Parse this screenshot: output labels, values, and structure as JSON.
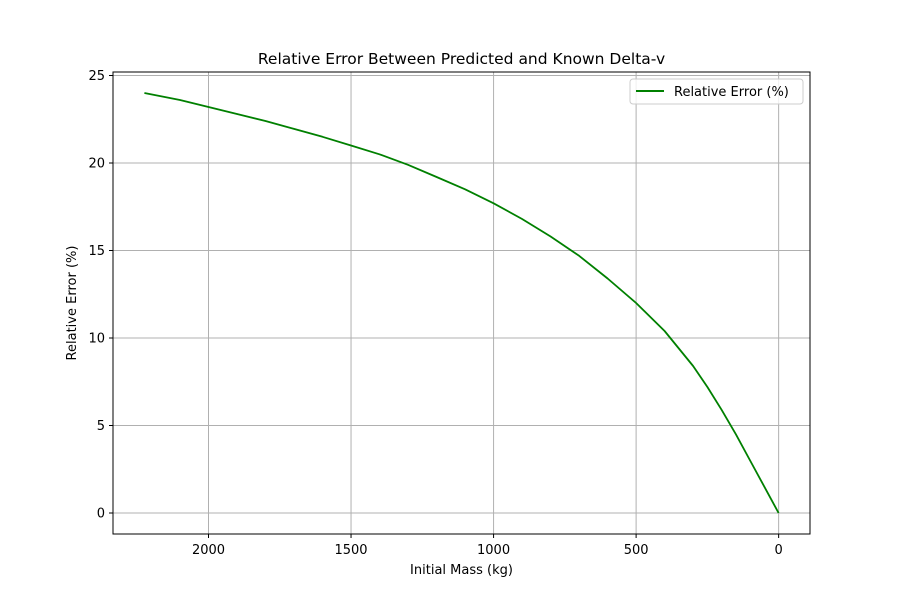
{
  "chart_data": {
    "type": "line",
    "title": "Relative Error Between Predicted and Known Delta-v",
    "xlabel": "Initial Mass (kg)",
    "ylabel": "Relative Error (%)",
    "xlim": [
      2335,
      -110
    ],
    "ylim": [
      -1.2,
      25.2
    ],
    "x_inverted": true,
    "grid": true,
    "legend_placement": "top-right",
    "x_ticks": [
      2000,
      1500,
      1000,
      500,
      0
    ],
    "y_ticks": [
      0,
      5,
      10,
      15,
      20,
      25
    ],
    "x_tick_labels": [
      "2000",
      "1500",
      "1000",
      "500",
      "0"
    ],
    "y_tick_labels": [
      "0",
      "5",
      "10",
      "15",
      "20",
      "25"
    ],
    "series": [
      {
        "name": "Relative Error (%)",
        "color": "#008000",
        "x": [
          2225,
          2100,
          2000,
          1900,
          1800,
          1700,
          1600,
          1500,
          1400,
          1300,
          1200,
          1100,
          1000,
          900,
          800,
          700,
          600,
          500,
          400,
          300,
          250,
          200,
          150,
          100,
          50,
          0
        ],
        "y": [
          24.0,
          23.6,
          23.2,
          22.8,
          22.4,
          21.95,
          21.5,
          21.0,
          20.5,
          19.9,
          19.2,
          18.5,
          17.7,
          16.8,
          15.8,
          14.7,
          13.4,
          12.0,
          10.4,
          8.4,
          7.2,
          5.9,
          4.5,
          3.0,
          1.5,
          0.0
        ]
      }
    ]
  }
}
